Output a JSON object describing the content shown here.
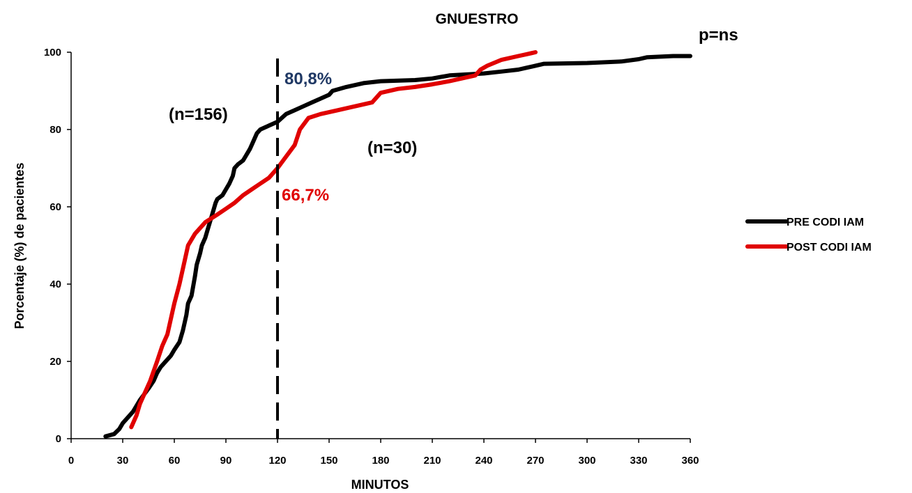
{
  "chart_data": {
    "type": "line",
    "title": "GNUESTRO",
    "xlabel": "MINUTOS",
    "ylabel": "Porcentaje (%) de pacientes",
    "xlim": [
      0,
      360
    ],
    "ylim": [
      0,
      100
    ],
    "xticks": [
      "0",
      "30",
      "60",
      "90",
      "120",
      "150",
      "180",
      "210",
      "240",
      "270",
      "300",
      "330",
      "360"
    ],
    "yticks": [
      "0",
      "20",
      "40",
      "60",
      "80",
      "100"
    ],
    "grid": false,
    "legend_position": "right",
    "reference_line": {
      "x": 120,
      "style": "dashed",
      "color": "#000000"
    },
    "annotations": {
      "pvalue": "p=ns",
      "n_pre": "(n=156)",
      "n_post": "(n=30)",
      "pct_pre": "80,8%",
      "pct_post": "66,7%"
    },
    "series": [
      {
        "name": "PRE CODI IAM",
        "color": "#000000",
        "x": [
          20,
          25,
          28,
          30,
          33,
          36,
          40,
          45,
          48,
          50,
          52,
          55,
          58,
          60,
          63,
          65,
          67,
          68,
          70,
          72,
          73,
          75,
          76,
          78,
          80,
          82,
          84,
          85,
          88,
          90,
          92,
          94,
          95,
          97,
          100,
          102,
          104,
          106,
          108,
          110,
          115,
          120,
          125,
          130,
          135,
          140,
          145,
          150,
          152,
          160,
          165,
          170,
          180,
          200,
          210,
          220,
          240,
          250,
          260,
          265,
          270,
          275,
          300,
          320,
          330,
          335,
          350,
          360
        ],
        "y": [
          0.6,
          1.2,
          2.5,
          4,
          5.5,
          7,
          10,
          13,
          15,
          17,
          18.5,
          20,
          21.5,
          23,
          25,
          28,
          32,
          35,
          37,
          42,
          45,
          48,
          50,
          52,
          55,
          58,
          61,
          62,
          63,
          64.5,
          66,
          68,
          70,
          71,
          72,
          73.5,
          75,
          77,
          79,
          80,
          81,
          82,
          84,
          85,
          86,
          87,
          88,
          89,
          90,
          91,
          91.5,
          92,
          92.5,
          92.8,
          93.2,
          94,
          94.5,
          95,
          95.5,
          96,
          96.5,
          97,
          97.2,
          97.6,
          98.2,
          98.7,
          99,
          99
        ]
      },
      {
        "name": "POST CODI IAM",
        "color": "#e00000",
        "x": [
          35,
          38,
          40,
          43,
          46,
          50,
          53,
          56,
          59,
          60,
          63,
          66,
          68,
          72,
          78,
          85,
          90,
          95,
          100,
          105,
          110,
          115,
          120,
          125,
          130,
          133,
          138,
          145,
          155,
          165,
          175,
          180,
          190,
          200,
          210,
          220,
          230,
          235,
          238,
          242,
          250,
          260,
          265,
          270
        ],
        "y": [
          3,
          6,
          9,
          12,
          15,
          20,
          24,
          27,
          33,
          35,
          40,
          46,
          50,
          53,
          56,
          58,
          59.5,
          61,
          63,
          64.5,
          66,
          67.5,
          70,
          73,
          76,
          80,
          83,
          84,
          85,
          86,
          87,
          89.5,
          90.5,
          91,
          91.7,
          92.5,
          93.5,
          94,
          95.5,
          96.5,
          98,
          99,
          99.5,
          100
        ]
      }
    ]
  }
}
